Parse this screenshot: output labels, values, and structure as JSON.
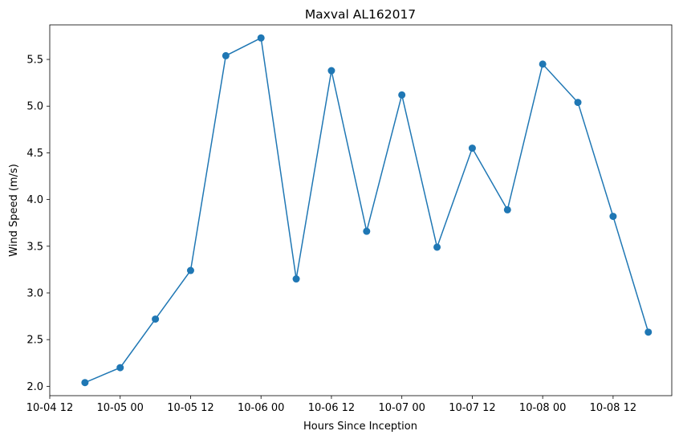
{
  "chart_data": {
    "type": "line",
    "title": "Maxval AL162017",
    "xlabel": "Hours Since Inception",
    "ylabel": "Wind Speed (m/s)",
    "x": [
      "2017-10-04 18:00",
      "2017-10-05 00:00",
      "2017-10-05 06:00",
      "2017-10-05 12:00",
      "2017-10-05 18:00",
      "2017-10-06 00:00",
      "2017-10-06 06:00",
      "2017-10-06 12:00",
      "2017-10-06 18:00",
      "2017-10-07 00:00",
      "2017-10-07 06:00",
      "2017-10-07 12:00",
      "2017-10-07 18:00",
      "2017-10-08 00:00",
      "2017-10-08 06:00",
      "2017-10-08 12:00",
      "2017-10-08 18:00"
    ],
    "series": [
      {
        "values": [
          2.04,
          2.2,
          2.72,
          3.24,
          5.54,
          5.73,
          3.15,
          5.38,
          3.66,
          5.12,
          3.49,
          4.55,
          3.89,
          5.45,
          5.04,
          3.82,
          2.58
        ]
      }
    ],
    "xlim": [
      "2017-10-04 12:00",
      "2017-10-08 22:00"
    ],
    "xtick_labels": [
      "10-04 12",
      "10-05 00",
      "10-05 12",
      "10-06 00",
      "10-06 12",
      "10-07 00",
      "10-07 12",
      "10-08 00",
      "10-08 12"
    ],
    "ylim": [
      1.9,
      5.87
    ],
    "yticks": [
      2.0,
      2.5,
      3.0,
      3.5,
      4.0,
      4.5,
      5.0,
      5.5
    ],
    "ytick_labels": [
      "2.0",
      "2.5",
      "3.0",
      "3.5",
      "4.0",
      "4.5",
      "5.0",
      "5.5"
    ],
    "grid": false,
    "colors": {
      "line": "#1f77b4",
      "axes": "#000000",
      "background": "#ffffff"
    }
  }
}
